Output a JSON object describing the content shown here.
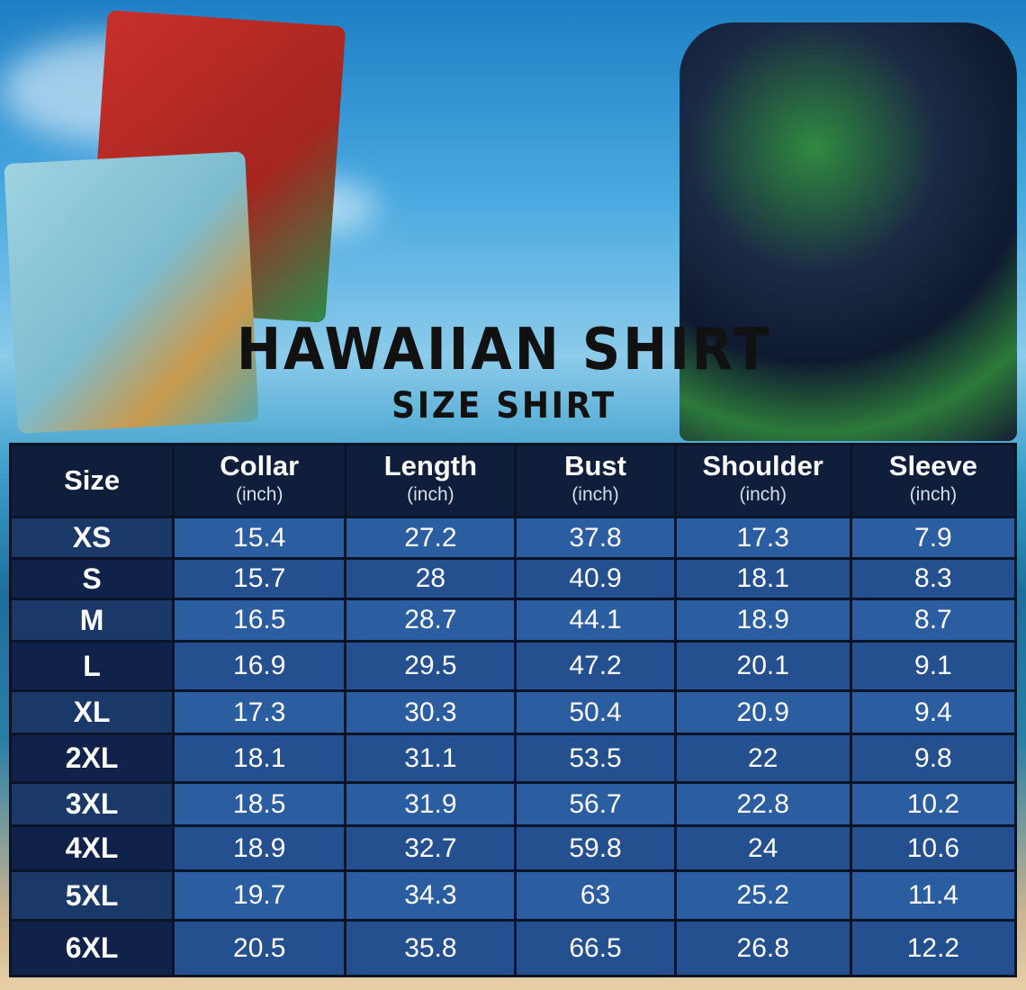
{
  "title": "HAWAIIAN SHIRT",
  "subtitle": "SIZE SHIRT",
  "colors": {
    "header_bg": "#0f1e3a",
    "row_light": "#2b5da1",
    "row_dark": "#24508f",
    "size_col": "#10224a"
  },
  "table": {
    "headers": [
      {
        "label": "Size",
        "unit": ""
      },
      {
        "label": "Collar",
        "unit": "(inch)"
      },
      {
        "label": "Length",
        "unit": "(inch)"
      },
      {
        "label": "Bust",
        "unit": "(inch)"
      },
      {
        "label": "Shoulder",
        "unit": "(inch)"
      },
      {
        "label": "Sleeve",
        "unit": "(inch)"
      }
    ],
    "rows": [
      [
        "XS",
        "15.4",
        "27.2",
        "37.8",
        "17.3",
        "7.9"
      ],
      [
        "S",
        "15.7",
        "28",
        "40.9",
        "18.1",
        "8.3"
      ],
      [
        "M",
        "16.5",
        "28.7",
        "44.1",
        "18.9",
        "8.7"
      ],
      [
        "L",
        "16.9",
        "29.5",
        "47.2",
        "20.1",
        "9.1"
      ],
      [
        "XL",
        "17.3",
        "30.3",
        "50.4",
        "20.9",
        "9.4"
      ],
      [
        "2XL",
        "18.1",
        "31.1",
        "53.5",
        "22",
        "9.8"
      ],
      [
        "3XL",
        "18.5",
        "31.9",
        "56.7",
        "22.8",
        "10.2"
      ],
      [
        "4XL",
        "18.9",
        "32.7",
        "59.8",
        "24",
        "10.6"
      ],
      [
        "5XL",
        "19.7",
        "34.3",
        "63",
        "25.2",
        "11.4"
      ],
      [
        "6XL",
        "20.5",
        "35.8",
        "66.5",
        "26.8",
        "12.2"
      ]
    ]
  }
}
